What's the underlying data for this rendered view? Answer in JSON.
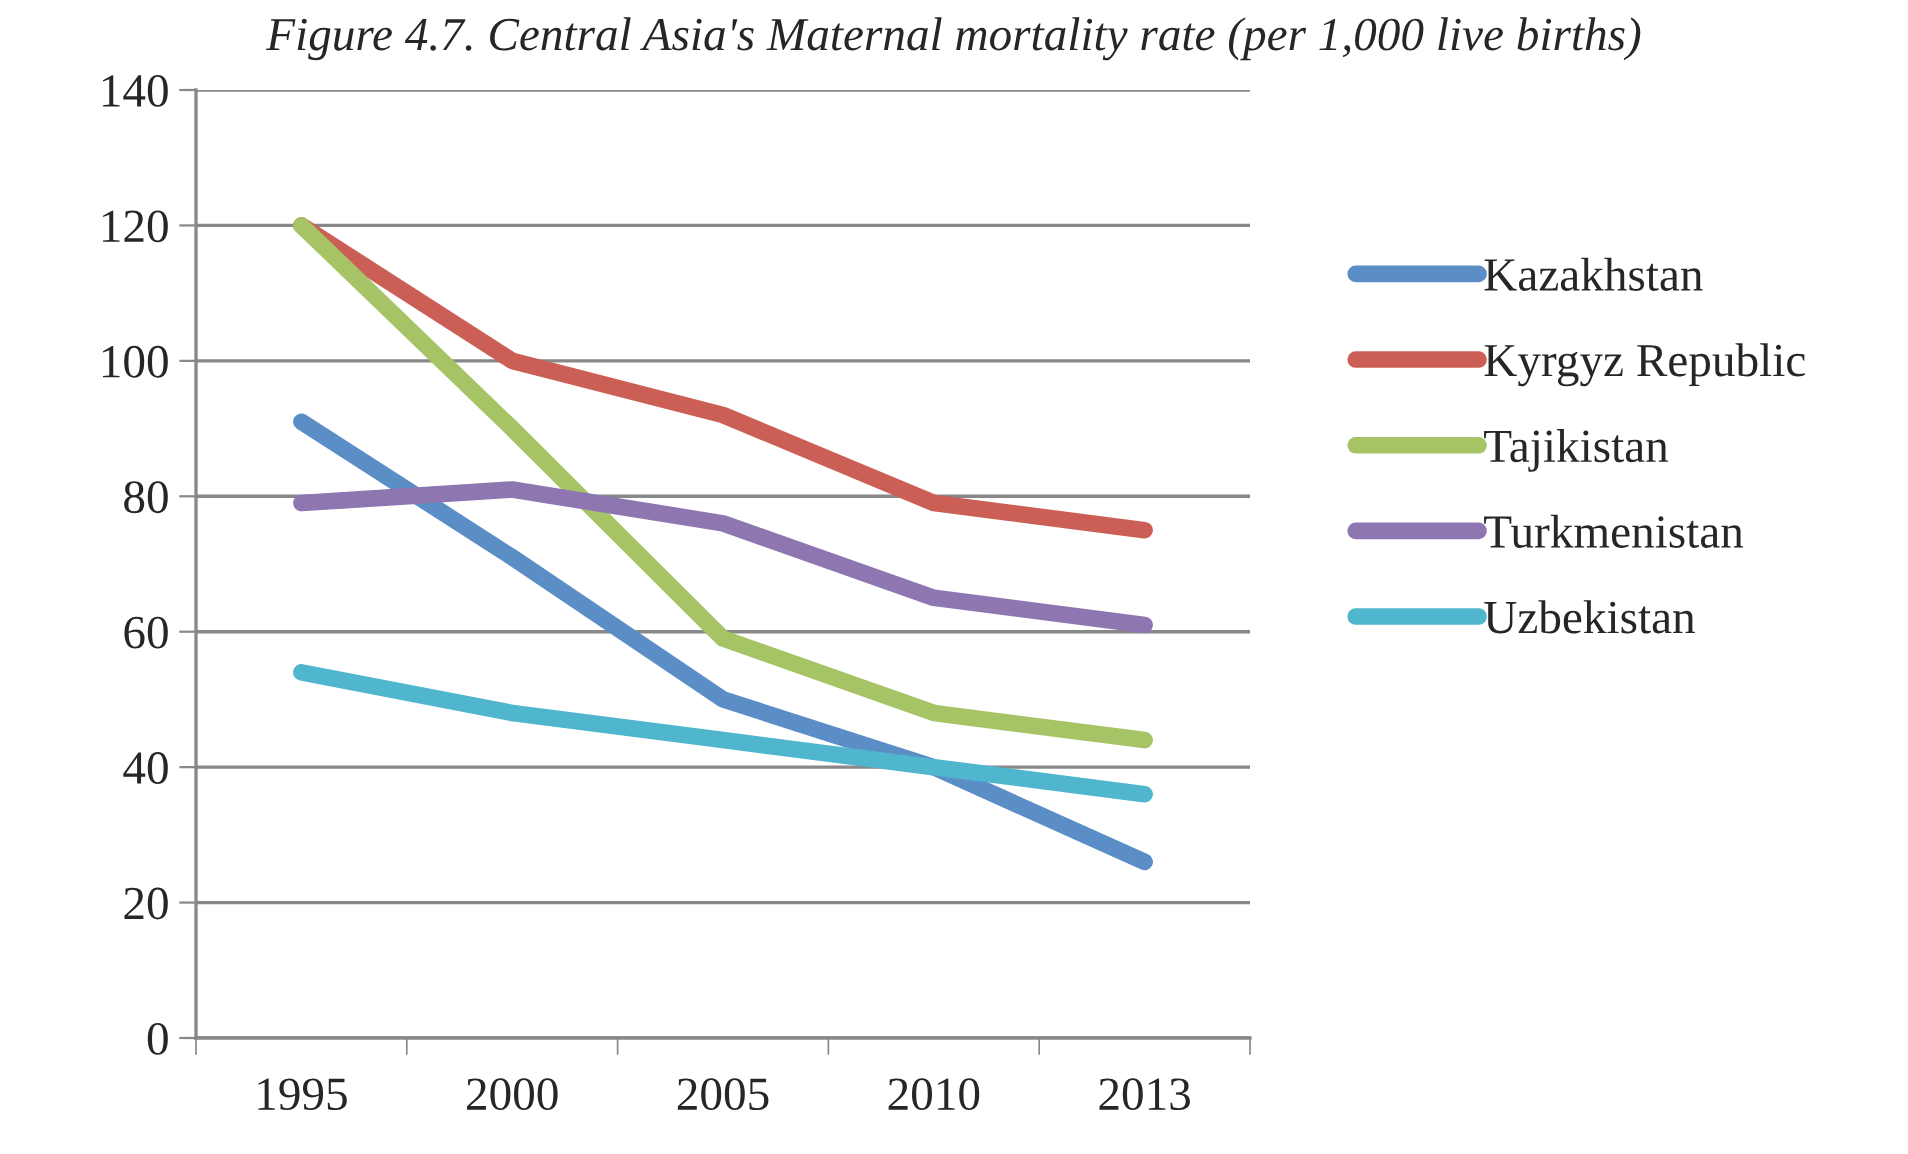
{
  "chart_data": {
    "type": "line",
    "title": "Figure 4.7. Central Asia's Maternal mortality rate (per 1,000 live births)",
    "categories": [
      "1995",
      "2000",
      "2005",
      "2010",
      "2013"
    ],
    "series": [
      {
        "name": "Kazakhstan",
        "color": "#5b8ec6",
        "values": [
          91,
          71,
          50,
          40,
          26
        ]
      },
      {
        "name": "Kyrgyz Republic",
        "color": "#cc5f55",
        "values": [
          120,
          100,
          92,
          79,
          75
        ]
      },
      {
        "name": "Tajikistan",
        "color": "#a6c365",
        "values": [
          120,
          90,
          59,
          48,
          44
        ]
      },
      {
        "name": "Turkmenistan",
        "color": "#8e76b0",
        "values": [
          79,
          81,
          76,
          65,
          61
        ]
      },
      {
        "name": "Uzbekistan",
        "color": "#4fb6cd",
        "values": [
          54,
          48,
          44,
          40,
          36
        ]
      }
    ],
    "ylim": [
      0,
      140
    ],
    "yticks": [
      0,
      20,
      40,
      60,
      80,
      100,
      120,
      140
    ],
    "grid": "y",
    "legend": "right",
    "marker": "none",
    "line_style": "solid"
  }
}
